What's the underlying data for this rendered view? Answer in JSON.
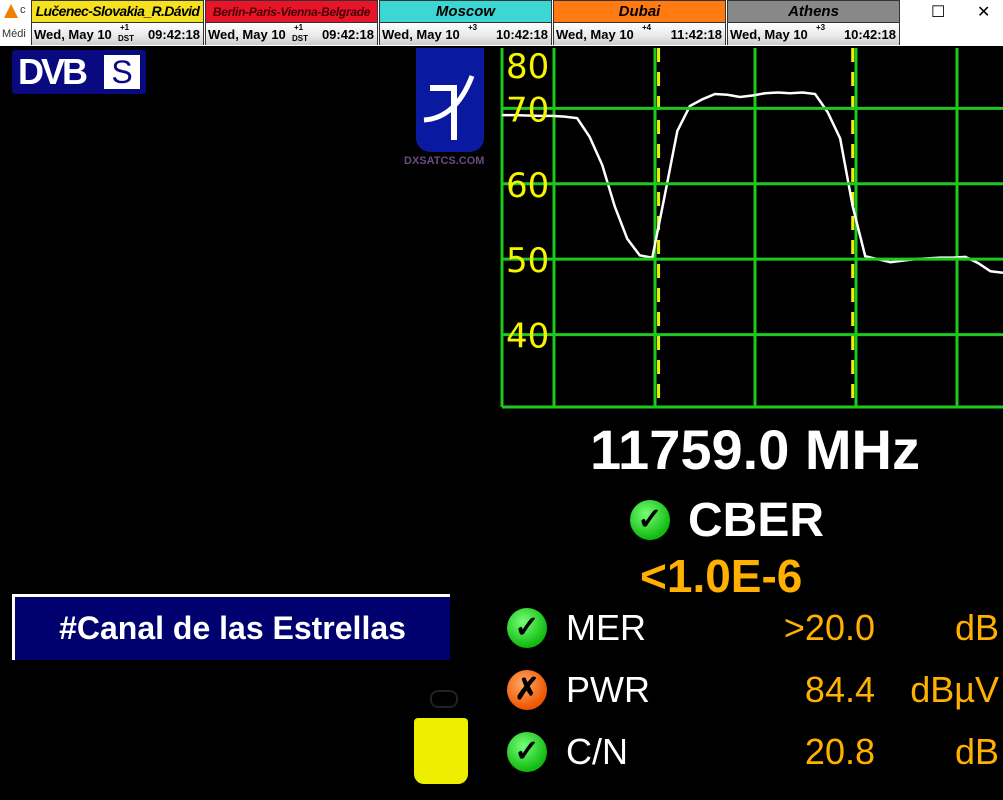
{
  "app": {
    "title_fragment": "c",
    "menu_fragment": "Médi"
  },
  "clocks": [
    {
      "city": "Lučenec-Slovakia_R.Dávid",
      "bg": "#f5e11e",
      "date": "Wed, May 10",
      "offset": "+1",
      "dst": "DST",
      "time": "09:42:18"
    },
    {
      "city": "Berlin-Paris-Vienna-Belgrade",
      "bg": "#e8142a",
      "date": "Wed, May 10",
      "offset": "+1",
      "dst": "DST",
      "time": "09:42:18"
    },
    {
      "city": "Moscow",
      "bg": "#3cd7d2",
      "date": "Wed, May 10",
      "offset": "+3",
      "dst": "",
      "time": "10:42:18"
    },
    {
      "city": "Dubai",
      "bg": "#ff7a10",
      "date": "Wed, May 10",
      "offset": "+4",
      "dst": "",
      "time": "11:42:18"
    },
    {
      "city": "Athens",
      "bg": "#888888",
      "date": "Wed, May 10",
      "offset": "+3",
      "dst": "",
      "time": "10:42:18"
    }
  ],
  "window": {
    "maximize": "☐",
    "close": "✕"
  },
  "logo": {
    "dvb": "DVB",
    "s": "S"
  },
  "watermark": "DXSATCS.COM",
  "chart_data": {
    "type": "line",
    "title": "",
    "xlabel": "",
    "ylabel": "",
    "yticks": [
      "40",
      "50",
      "60",
      "70",
      "80"
    ],
    "ylim": [
      30.4,
      78
    ],
    "xlim": [
      0,
      40
    ],
    "grid": true,
    "grid_color": "#1ec81e",
    "trace_color": "#ffffff",
    "marker_color": "#f0f000",
    "markers_x": [
      12.5,
      28
    ],
    "x": [
      0,
      1,
      2,
      3,
      4,
      5,
      6,
      7,
      8,
      9,
      10,
      11,
      12,
      13,
      14,
      15,
      16,
      17,
      18,
      19,
      20,
      21,
      22,
      23,
      24,
      25,
      26,
      27,
      28,
      29,
      30,
      31,
      32,
      33,
      34,
      35,
      36,
      37,
      38,
      39,
      40
    ],
    "values": [
      69.1,
      69.1,
      69.05,
      69,
      69,
      68.9,
      68.7,
      66.2,
      62.5,
      57,
      52.7,
      50.5,
      50.2,
      58.5,
      67,
      70.3,
      71.2,
      71.9,
      71.8,
      71.5,
      71.7,
      72,
      72.1,
      72,
      72.1,
      71.9,
      69.5,
      66,
      57,
      50.4,
      50,
      49.6,
      49.8,
      50,
      50.1,
      50.2,
      50.2,
      50.3,
      49.5,
      48.4,
      48.2
    ]
  },
  "frequency": "11759.0 MHz",
  "cber": {
    "label": "CBER",
    "value": "<1.0E-6",
    "status": "ok"
  },
  "channel": "#Canal de las Estrellas",
  "measurements": [
    {
      "label": "MER",
      "value": ">20.0",
      "unit": "dB",
      "status": "ok"
    },
    {
      "label": "PWR",
      "value": "84.4",
      "unit": "dBµV",
      "status": "fail"
    },
    {
      "label": "C/N",
      "value": "20.8",
      "unit": "dB",
      "status": "ok"
    }
  ],
  "status_icons": {
    "ok": "✓",
    "fail": "✗"
  }
}
